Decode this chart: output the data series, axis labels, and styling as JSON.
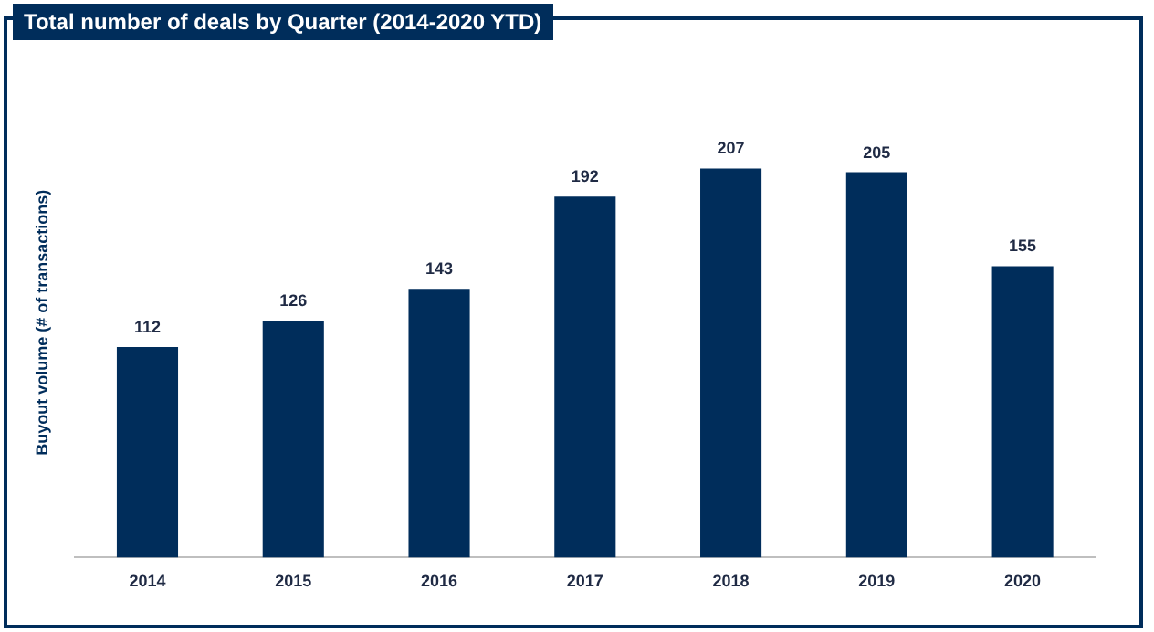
{
  "chart_data": {
    "type": "bar",
    "title": "Total number of deals by Quarter (2014-2020 YTD)",
    "ylabel": "Buyout volume (# of transactions)",
    "categories": [
      "2014",
      "2015",
      "2016",
      "2017",
      "2018",
      "2019",
      "2020"
    ],
    "values": [
      112,
      126,
      143,
      192,
      207,
      205,
      155
    ],
    "color": "#002d5b",
    "data_labels": true,
    "legend": false,
    "grid": false
  }
}
